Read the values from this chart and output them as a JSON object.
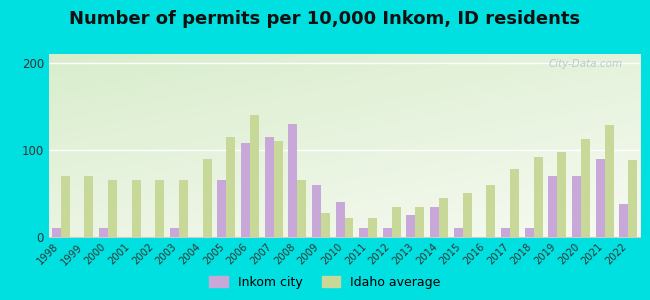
{
  "title": "Number of permits per 10,000 Inkom, ID residents",
  "years": [
    1998,
    1999,
    2000,
    2001,
    2002,
    2003,
    2004,
    2005,
    2006,
    2007,
    2008,
    2009,
    2010,
    2011,
    2012,
    2013,
    2014,
    2015,
    2016,
    2017,
    2018,
    2019,
    2020,
    2021,
    2022
  ],
  "inkom_city": [
    10,
    0,
    10,
    0,
    0,
    10,
    0,
    65,
    108,
    115,
    130,
    60,
    40,
    10,
    10,
    25,
    35,
    10,
    0,
    10,
    10,
    70,
    70,
    90,
    38
  ],
  "idaho_avg": [
    70,
    70,
    65,
    65,
    65,
    65,
    90,
    115,
    140,
    110,
    65,
    28,
    22,
    22,
    35,
    35,
    45,
    50,
    60,
    78,
    92,
    98,
    112,
    128,
    88
  ],
  "inkom_color": "#c8a8d8",
  "idaho_color": "#c8d898",
  "outer_bg": "#00e0e0",
  "chart_bg_colors": [
    "#f5faf0",
    "#dff0d8"
  ],
  "ylim": [
    0,
    210
  ],
  "yticks": [
    0,
    100,
    200
  ],
  "bar_width": 0.38,
  "title_fontsize": 13,
  "legend_fontsize": 9,
  "watermark": "City-Data.com"
}
